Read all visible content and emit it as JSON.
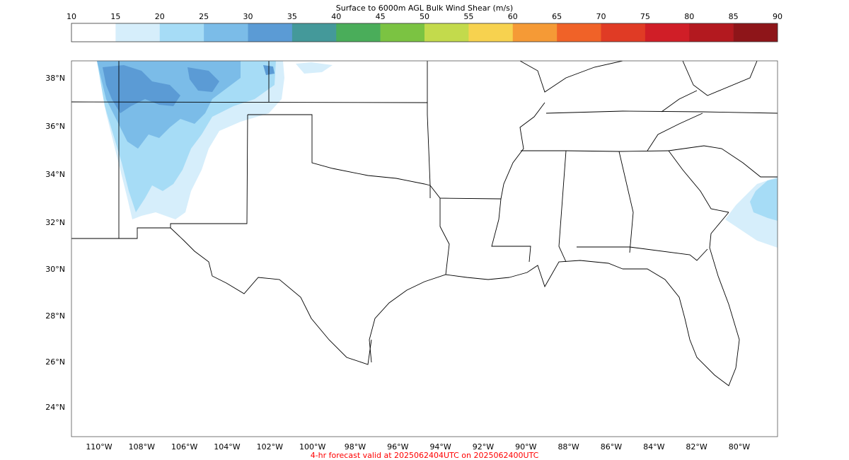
{
  "colorbar": {
    "title": "Surface to 6000m AGL Bulk Wind Shear (m/s)",
    "ticks": [
      "10",
      "15",
      "20",
      "25",
      "30",
      "35",
      "40",
      "45",
      "50",
      "55",
      "60",
      "65",
      "70",
      "75",
      "80",
      "85",
      "90"
    ],
    "colors": [
      "#ffffff",
      "#d6eefb",
      "#a6dcf6",
      "#7bbce8",
      "#5b9bd5",
      "#44999a",
      "#4aad5a",
      "#7bc342",
      "#c3da4c",
      "#f7d24f",
      "#f59a36",
      "#f06228",
      "#e03b25",
      "#d01e27",
      "#b3191f",
      "#8e1519"
    ]
  },
  "map": {
    "lat_ticks": [
      "38°N",
      "36°N",
      "34°N",
      "32°N",
      "30°N",
      "28°N",
      "26°N",
      "24°N"
    ],
    "lon_ticks": [
      "110°W",
      "108°W",
      "106°W",
      "104°W",
      "102°W",
      "100°W",
      "98°W",
      "96°W",
      "94°W",
      "92°W",
      "90°W",
      "88°W",
      "86°W",
      "84°W",
      "82°W",
      "80°W"
    ],
    "border_color": "#000000"
  },
  "footer": {
    "caption": "4-hr forecast valid at 2025062404UTC on 2025062400UTC",
    "caption_color": "#ff0000"
  }
}
